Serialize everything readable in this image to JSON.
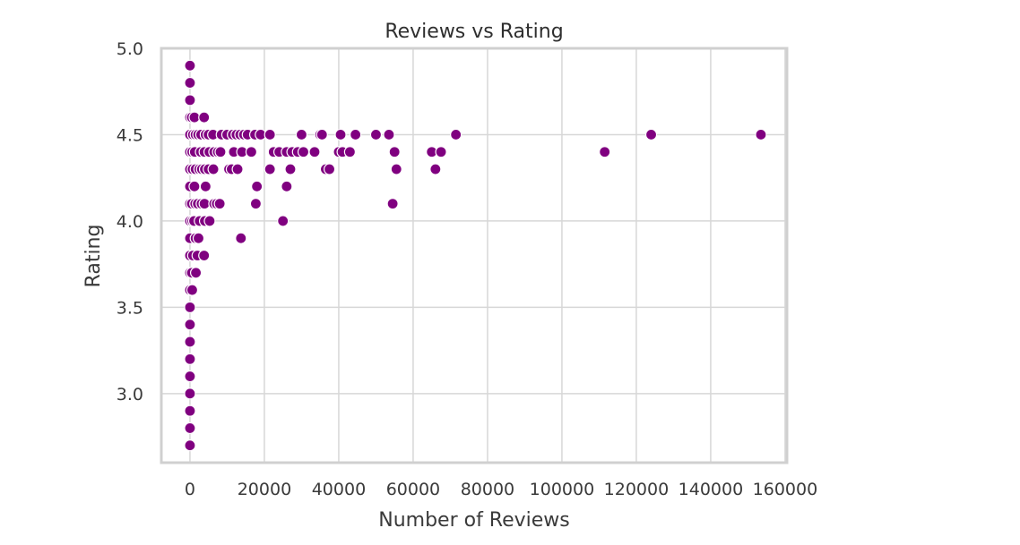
{
  "chart_data": {
    "type": "scatter",
    "title": "Reviews vs Rating",
    "xlabel": "Number of Reviews",
    "ylabel": "Rating",
    "xlim": [
      -7700,
      160500
    ],
    "ylim": [
      2.6,
      5.0
    ],
    "xticks": [
      0,
      20000,
      40000,
      60000,
      80000,
      100000,
      120000,
      140000,
      160000
    ],
    "xtick_labels": [
      "0",
      "20000",
      "40000",
      "60000",
      "80000",
      "100000",
      "120000",
      "140000",
      "160000"
    ],
    "yticks": [
      3.0,
      3.5,
      4.0,
      4.5,
      5.0
    ],
    "ytick_labels": [
      "3.0",
      "3.5",
      "4.0",
      "4.5",
      "5.0"
    ],
    "grid": true,
    "marker_color": "#800080",
    "series": [
      {
        "points": [
          [
            0,
            4.9
          ],
          [
            0,
            4.8
          ],
          [
            0,
            4.7
          ],
          [
            0,
            4.6
          ],
          [
            0,
            4.5
          ],
          [
            0,
            4.4
          ],
          [
            0,
            4.3
          ],
          [
            0,
            4.2
          ],
          [
            0,
            4.1
          ],
          [
            0,
            4.0
          ],
          [
            0,
            3.9
          ],
          [
            0,
            3.8
          ],
          [
            0,
            3.7
          ],
          [
            0,
            3.6
          ],
          [
            0,
            3.5
          ],
          [
            0,
            3.4
          ],
          [
            0,
            3.3
          ],
          [
            0,
            3.2
          ],
          [
            0,
            3.1
          ],
          [
            0,
            3.0
          ],
          [
            0,
            2.9
          ],
          [
            0,
            2.8
          ],
          [
            0,
            2.7
          ],
          [
            500,
            4.6
          ],
          [
            800,
            4.5
          ],
          [
            600,
            4.4
          ],
          [
            700,
            4.3
          ],
          [
            500,
            4.1
          ],
          [
            600,
            4.0
          ],
          [
            800,
            3.8
          ],
          [
            500,
            3.7
          ],
          [
            600,
            3.6
          ],
          [
            1200,
            4.6
          ],
          [
            1500,
            4.5
          ],
          [
            1300,
            4.4
          ],
          [
            1500,
            4.3
          ],
          [
            1200,
            4.2
          ],
          [
            1400,
            4.1
          ],
          [
            1100,
            4.0
          ],
          [
            1500,
            3.9
          ],
          [
            1600,
            3.7
          ],
          [
            2200,
            4.5
          ],
          [
            2500,
            4.3
          ],
          [
            2100,
            4.1
          ],
          [
            2600,
            4.0
          ],
          [
            2300,
            3.9
          ],
          [
            2000,
            3.8
          ],
          [
            3000,
            4.5
          ],
          [
            2900,
            4.4
          ],
          [
            3200,
            4.3
          ],
          [
            3100,
            4.1
          ],
          [
            3800,
            4.6
          ],
          [
            4200,
            4.5
          ],
          [
            3900,
            4.4
          ],
          [
            4000,
            4.3
          ],
          [
            4200,
            4.2
          ],
          [
            3900,
            4.1
          ],
          [
            4000,
            4.0
          ],
          [
            3800,
            3.8
          ],
          [
            5000,
            4.5
          ],
          [
            5200,
            4.4
          ],
          [
            5000,
            4.3
          ],
          [
            5300,
            4.0
          ],
          [
            6200,
            4.5
          ],
          [
            6500,
            4.4
          ],
          [
            6300,
            4.3
          ],
          [
            6500,
            4.1
          ],
          [
            7500,
            4.4
          ],
          [
            7200,
            4.1
          ],
          [
            8500,
            4.5
          ],
          [
            8200,
            4.4
          ],
          [
            8000,
            4.1
          ],
          [
            10000,
            4.5
          ],
          [
            10500,
            4.3
          ],
          [
            11500,
            4.5
          ],
          [
            11800,
            4.4
          ],
          [
            11200,
            4.3
          ],
          [
            12500,
            4.5
          ],
          [
            12800,
            4.3
          ],
          [
            13500,
            4.5
          ],
          [
            14500,
            4.5
          ],
          [
            14000,
            4.4
          ],
          [
            13700,
            3.9
          ],
          [
            15500,
            4.5
          ],
          [
            16500,
            4.4
          ],
          [
            17500,
            4.5
          ],
          [
            18000,
            4.2
          ],
          [
            17700,
            4.1
          ],
          [
            19000,
            4.5
          ],
          [
            21500,
            4.5
          ],
          [
            21500,
            4.3
          ],
          [
            22500,
            4.4
          ],
          [
            24000,
            4.4
          ],
          [
            25000,
            4.0
          ],
          [
            26000,
            4.4
          ],
          [
            26000,
            4.2
          ],
          [
            27000,
            4.3
          ],
          [
            27500,
            4.4
          ],
          [
            29000,
            4.4
          ],
          [
            30000,
            4.5
          ],
          [
            30500,
            4.4
          ],
          [
            33500,
            4.4
          ],
          [
            35000,
            4.5
          ],
          [
            35500,
            4.5
          ],
          [
            36500,
            4.3
          ],
          [
            37500,
            4.3
          ],
          [
            40000,
            4.4
          ],
          [
            40500,
            4.5
          ],
          [
            41000,
            4.4
          ],
          [
            43000,
            4.4
          ],
          [
            44500,
            4.5
          ],
          [
            50000,
            4.5
          ],
          [
            53500,
            4.5
          ],
          [
            54500,
            4.1
          ],
          [
            55000,
            4.4
          ],
          [
            55500,
            4.3
          ],
          [
            65000,
            4.4
          ],
          [
            66000,
            4.3
          ],
          [
            67500,
            4.4
          ],
          [
            71500,
            4.5
          ],
          [
            111500,
            4.4
          ],
          [
            124000,
            4.5
          ],
          [
            153500,
            4.5
          ]
        ]
      }
    ]
  }
}
